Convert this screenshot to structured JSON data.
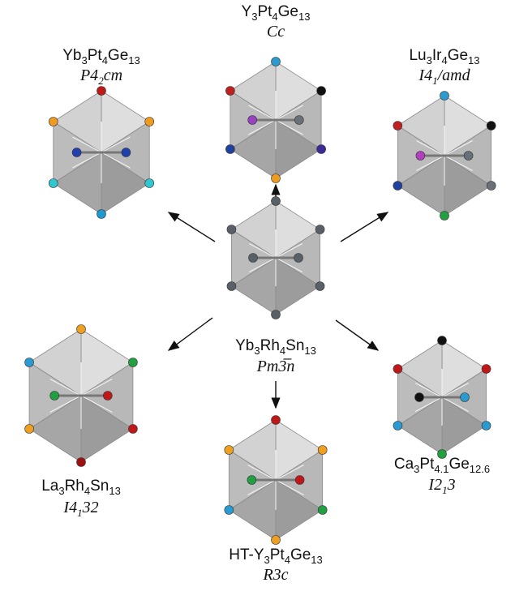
{
  "nodes": [
    {
      "formula": [
        "Yb",
        "3",
        "Rh",
        "4",
        "Sn",
        "13"
      ],
      "space_group": [
        "Pm3̅n"
      ]
    },
    {
      "formula": [
        "Y",
        "3",
        "Pt",
        "4",
        "Ge",
        "13"
      ],
      "space_group": [
        "Cc"
      ]
    },
    {
      "formula": [
        "Yb",
        "3",
        "Pt",
        "4",
        "Ge",
        "13"
      ],
      "space_group": [
        "P4",
        "2",
        "cm"
      ]
    },
    {
      "formula": [
        "Lu",
        "3",
        "Ir",
        "4",
        "Ge",
        "13"
      ],
      "space_group": [
        "I4",
        "1",
        "/amd"
      ]
    },
    {
      "formula": [
        "La",
        "3",
        "Rh",
        "4",
        "Sn",
        "13"
      ],
      "space_group": [
        "I4",
        "1",
        "32"
      ]
    },
    {
      "formula": [
        "HT-Y",
        "3",
        "Pt",
        "4",
        "Ge",
        "13"
      ],
      "space_group": [
        "R3c"
      ]
    },
    {
      "formula": [
        "Ca",
        "3",
        "Pt",
        "4.1",
        "Ge",
        "12.6"
      ],
      "space_group": [
        "I2",
        "1",
        "3"
      ]
    }
  ]
}
